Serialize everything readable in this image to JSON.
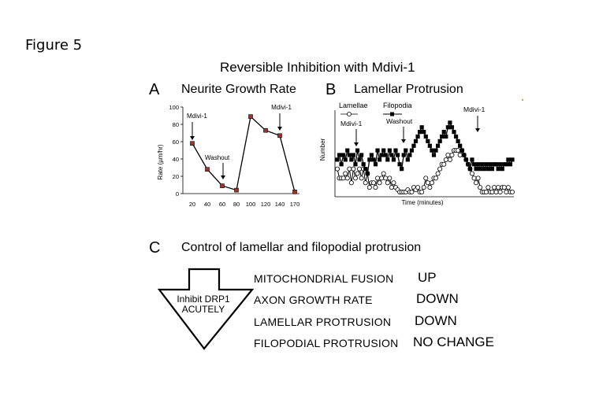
{
  "figure_label": "Figure 5",
  "title": "Reversible Inhibition with Mdivi-1",
  "panels": {
    "a": {
      "letter": "A",
      "title": "Neurite Growth Rate"
    },
    "b": {
      "letter": "B",
      "title": "Lamellar Protrusion"
    },
    "c": {
      "letter": "C",
      "title": "Control of lamellar and filopodial protrusion"
    }
  },
  "chart_data": [
    {
      "type": "line",
      "panel": "A",
      "title": "Neurite Growth Rate",
      "xlabel": "",
      "ylabel": "Rate (µm/hr)",
      "ylim": [
        0,
        100
      ],
      "yticks": [
        0,
        20,
        40,
        60,
        80,
        100
      ],
      "xtick_labels": [
        "20",
        "40",
        "60",
        "80",
        "100",
        "120",
        "140",
        "170"
      ],
      "series": [
        {
          "points": [
            {
              "x": 20,
              "y": 58
            },
            {
              "x": 40,
              "y": 28
            },
            {
              "x": 60,
              "y": 9
            },
            {
              "x": 80,
              "y": 4
            },
            {
              "x": 100,
              "y": 89
            },
            {
              "x": 120,
              "y": 73
            },
            {
              "x": 140,
              "y": 67
            },
            {
              "x": 170,
              "y": 2
            }
          ]
        }
      ],
      "marker_color": "#a0322c",
      "line_color": "#000000",
      "annotations": [
        {
          "text": "Mdivi-1",
          "x": 20
        },
        {
          "text": "Washout",
          "x": 60
        },
        {
          "text": "Mdivi-1",
          "x": 140
        }
      ]
    },
    {
      "type": "line",
      "panel": "B",
      "title": "Lamellar Protrusion",
      "xlabel": "Time (minutes)",
      "ylabel": "Number",
      "series": [
        {
          "name": "Lamellae",
          "marker": "open-circle",
          "values": [
            5,
            3,
            3,
            3,
            4,
            3,
            5,
            2,
            5,
            3,
            4,
            5,
            3,
            5,
            2,
            4,
            1,
            2,
            2,
            1,
            3,
            2,
            3,
            4,
            3,
            2,
            3,
            1,
            2,
            1,
            0.5,
            0,
            0,
            0,
            0,
            0.5,
            0,
            0,
            1,
            0.5,
            1,
            0,
            0,
            1,
            3,
            2,
            1,
            2,
            3,
            3,
            4,
            5,
            6,
            6,
            7,
            8,
            7,
            8,
            9,
            9,
            9,
            8,
            9,
            8,
            7,
            6,
            5,
            4,
            3,
            2,
            3,
            1,
            0,
            0,
            0,
            1,
            0,
            0,
            1,
            0,
            1,
            0,
            1,
            1,
            0,
            1,
            0,
            0
          ]
        },
        {
          "name": "Filopodia",
          "marker": "filled-square",
          "values": [
            7,
            8,
            6,
            8,
            7,
            9,
            8,
            7,
            8,
            6,
            9,
            7,
            8,
            6,
            5,
            4,
            7,
            8,
            7,
            6,
            9,
            7,
            8,
            9,
            8,
            7,
            9,
            8,
            7,
            9,
            8,
            6,
            5,
            8,
            9,
            7,
            8,
            9,
            10,
            11,
            12,
            13,
            14,
            13,
            12,
            11,
            10,
            9,
            8,
            9,
            10,
            11,
            12,
            13,
            12,
            14,
            15,
            14,
            13,
            12,
            11,
            10,
            9,
            8,
            7,
            6,
            5,
            7,
            6,
            5,
            6,
            5,
            6,
            5,
            6,
            5,
            6,
            5,
            6,
            6,
            5,
            6,
            5,
            6,
            6,
            7,
            6,
            7
          ]
        }
      ],
      "annotations": [
        {
          "text": "Mdivi-1"
        },
        {
          "text": "Washout"
        },
        {
          "text": "Mdivi-1"
        }
      ]
    }
  ],
  "control": {
    "arrow_text_line1": "Inhibit DRP1",
    "arrow_text_line2": "ACUTELY",
    "rows": [
      {
        "label": "MITOCHONDRIAL FUSION",
        "value": "UP"
      },
      {
        "label": "AXON GROWTH RATE",
        "value": "DOWN"
      },
      {
        "label": "LAMELLAR PROTRUSION",
        "value": "DOWN"
      },
      {
        "label": "FILOPODIAL PROTRUSION",
        "value": "NO CHANGE"
      }
    ]
  }
}
